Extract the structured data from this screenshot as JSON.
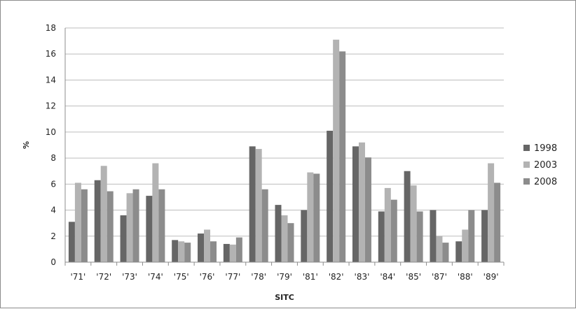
{
  "chart_data": {
    "type": "bar",
    "title": "",
    "xlabel": "SITC",
    "ylabel": "%",
    "ylim": [
      0,
      18
    ],
    "yticks": [
      0,
      2,
      4,
      6,
      8,
      10,
      12,
      14,
      16,
      18
    ],
    "grid": true,
    "legend_position": "right",
    "categories": [
      "'71'",
      "'72'",
      "'73'",
      "'74'",
      "'75'",
      "'76'",
      "'77'",
      "'78'",
      "'79'",
      "'81'",
      "'82'",
      "'83'",
      "'84'",
      "'85'",
      "'87'",
      "'88'",
      "'89'"
    ],
    "series": [
      {
        "name": "1998",
        "color": "#666666",
        "values": [
          3.1,
          6.3,
          3.6,
          5.1,
          1.7,
          2.2,
          1.4,
          8.9,
          4.4,
          4.0,
          10.1,
          8.9,
          3.9,
          7.0,
          4.0,
          1.6,
          4.0
        ]
      },
      {
        "name": "2003",
        "color": "#b3b3b3",
        "values": [
          6.1,
          7.4,
          5.3,
          7.6,
          1.6,
          2.5,
          1.35,
          8.7,
          3.6,
          6.9,
          17.1,
          9.2,
          5.7,
          5.9,
          2.0,
          2.5,
          7.6
        ]
      },
      {
        "name": "2008",
        "color": "#8c8c8c",
        "values": [
          5.6,
          5.45,
          5.6,
          5.6,
          1.5,
          1.6,
          1.9,
          5.6,
          3.0,
          6.8,
          16.2,
          8.05,
          4.8,
          3.9,
          1.5,
          4.0,
          6.1
        ]
      }
    ]
  }
}
